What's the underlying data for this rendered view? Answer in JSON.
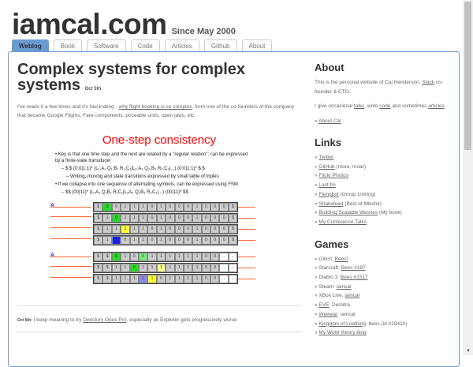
{
  "header": {
    "site": "iamcal.com",
    "since": "Since May 2000"
  },
  "tabs": [
    "Weblog",
    "Book",
    "Software",
    "Code",
    "Articles",
    "Github",
    "About"
  ],
  "post": {
    "title": "Complex systems for complex systems",
    "date": "Oct 5th",
    "intro_pre": "I've reads it a few times and it's fascinating - ",
    "intro_link": "why flight booking is so complex",
    "intro_post": ", from one of the co-founders of the company that became Google Flights. Fare components, priceable units, open jaws, etc",
    "slide": {
      "title": "One-step consistency",
      "bullets": [
        "• Key is that one time step and the next are related by a \"regular relation\": can be expressed by a finite-state transducer",
        "– $:$ (0:0|1:1)* (L₁:A₁ Q₁:B₁ R₁:C₁|L₂:A₂ Q₂:B₂ R₂:C₂|...) (0:0|1:1)* $:$",
        "– Writing, moving and state transitions expressed by small table of triples",
        "• If we collapse into one sequence of alternating symbols, can be expressed using FSM",
        "– $$ (00|11)* (L₁A₁ Q₁B₁ R₁C₁|L₂A₂ Q₂B₂ R₂C₂|...) (00|11)* $$"
      ],
      "label_a": "A",
      "rows": [
        {
          "cells": [
            "$",
            "0",
            "0",
            "1",
            "1",
            "1",
            "0",
            "1",
            "0",
            "0",
            "0",
            "1",
            "0",
            "0",
            "0",
            "$"
          ],
          "hl": {
            "1": "#22dd22"
          }
        },
        {
          "cells": [
            "$",
            "1",
            "0",
            "1",
            "1",
            "1",
            "0",
            "1",
            "0",
            "0",
            "0",
            "1",
            "0",
            "0",
            "0",
            "$"
          ],
          "hl": {
            "2": "#22dd22"
          }
        },
        {
          "cells": [
            "$",
            "1",
            "1",
            "1",
            "1",
            "1",
            "0",
            "1",
            "0",
            "0",
            "0",
            "1",
            "0",
            "0",
            "0",
            "$"
          ],
          "hl": {
            "3": "#ffff33"
          }
        },
        {
          "cells": [
            "$",
            "1",
            "1",
            "0",
            "1",
            "1",
            "0",
            "1",
            "0",
            "0",
            "0",
            "1",
            "0",
            "0",
            "0",
            "$"
          ],
          "hl": {
            "2": "#1122ee"
          }
        },
        {
          "cells": [
            "$",
            "$",
            "0",
            "1",
            "0",
            "0",
            "1",
            "1",
            "1",
            "1",
            "1",
            "1",
            "0",
            "0",
            "...",
            "..."
          ],
          "hl": {
            "2": "#22dd22",
            "5": "#77ee77",
            "14": "#fff",
            "15": "#fff"
          }
        },
        {
          "cells": [
            "$",
            "$",
            "1",
            "1",
            "0",
            "1",
            "1",
            "1",
            "1",
            "1",
            "1",
            "1",
            "0",
            "0",
            "...",
            "..."
          ],
          "hl": {
            "4": "#22dd22",
            "7": "#ffff88",
            "14": "#fff",
            "15": "#fff"
          }
        },
        {
          "cells": [
            "$",
            "$",
            "1",
            "1",
            "1",
            "1",
            "1",
            "0",
            "1",
            "1",
            "1",
            "1",
            "0",
            "0",
            "...",
            "..."
          ],
          "hl": {
            "5": "#8888ee",
            "6": "#ffff33",
            "14": "#fff",
            "15": "#fff"
          }
        }
      ]
    }
  },
  "note": {
    "date": "Oct 5th:",
    "pre": " I keep meaning to try ",
    "link": "Directory Opus Pro",
    "post": ", especially as Explorer gets progressively worse"
  },
  "about": {
    "heading": "About",
    "p1_pre": "This is the personal website of Cal Henderson, ",
    "p1_link": "Slack",
    "p1_post": " co-founder & CTO.",
    "p2_a": "I give occasional ",
    "talks": "talks",
    "p2_b": ", write ",
    "code": "code",
    "p2_c": " and sometimes ",
    "articles": "articles",
    "p2_d": ".",
    "more": "About Cal"
  },
  "links": {
    "heading": "Links",
    "items": [
      [
        "Twitter",
        ""
      ],
      [
        "GitHub",
        " (more, moar)"
      ],
      [
        "Flickr Photos",
        ""
      ],
      [
        "Last.fm",
        ""
      ],
      [
        "Flengbot",
        " (Group Linklog)"
      ],
      [
        "Shakefeed",
        " (Best of Mlkshk)"
      ],
      [
        "Building Scalable Wesites",
        " (My book)"
      ],
      [
        "My Conference Talks",
        ""
      ]
    ]
  },
  "games": {
    "heading": "Games",
    "items": [
      [
        "Glitch: ",
        "Bees!",
        ""
      ],
      [
        "Starcraft: ",
        "Bees #187",
        ""
      ],
      [
        "Diablo 3: ",
        "Bees #1517",
        ""
      ],
      [
        "Steam: ",
        "iamcal",
        ""
      ],
      [
        "XBox Live: ",
        "iamcal",
        ""
      ],
      [
        "",
        "EVE",
        ": Demitra"
      ],
      [
        "",
        "Weewar",
        ": iamcal"
      ],
      [
        "",
        "Kingdom of Loathing",
        ": bees (id #29410)"
      ],
      [
        "",
        "My WoW theory blog",
        ""
      ]
    ]
  }
}
